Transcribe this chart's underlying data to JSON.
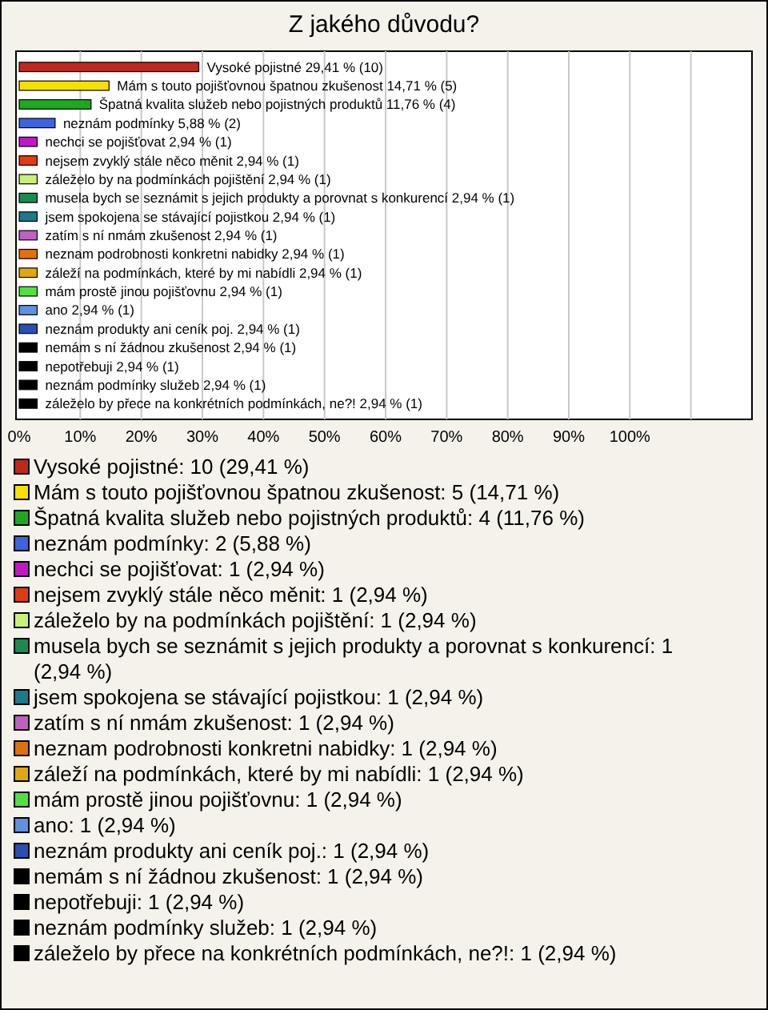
{
  "chart_data": [
    {
      "type": "bar",
      "title": "Z jakého důvodu?",
      "orientation": "horizontal",
      "categories": [
        "Vysoké pojistné",
        "Mám s touto pojišťovnou špatnou zkušenost",
        "Špatná kvalita služeb nebo pojistných produktů",
        "neznám podmínky",
        "nechci se pojišťovat",
        "nejsem zvyklý stále něco měnit",
        "záleželo by na  podmínkách  pojištění",
        "musela bych se seznámit s jejich produkty a porovnat s konkurencí",
        "jsem spokojena se stávající pojistkou",
        "zatím s ní nmám zkušenost",
        "neznam podrobnosti konkretni nabidky",
        "záleží na podmínkách, které by mi nabídli",
        "mám prostě jinou pojišťovnu",
        "ano",
        "neznám produkty ani ceník poj.",
        "nemám s ní žádnou zkušenost",
        "nepotřebuji",
        "neznám podmínky služeb",
        "záleželo by přece na konkrétních podmínkách, ne?!"
      ],
      "values": [
        29.41,
        14.71,
        11.76,
        5.88,
        2.94,
        2.94,
        2.94,
        2.94,
        2.94,
        2.94,
        2.94,
        2.94,
        2.94,
        2.94,
        2.94,
        2.94,
        2.94,
        2.94,
        2.94
      ],
      "value_labels": [
        "29,41 % (10)",
        "14,71 % (5)",
        "11,76 % (4)",
        "5,88 % (2)",
        "2,94 % (1)",
        "2,94 % (1)",
        "2,94 % (1)",
        "2,94 % (1)",
        "2,94 % (1)",
        "2,94 % (1)",
        "2,94 % (1)",
        "2,94 % (1)",
        "2,94 % (1)",
        "2,94 % (1)",
        "2,94 % (1)",
        "2,94 % (1)",
        "2,94 % (1)",
        "2,94 % (1)",
        "2,94 % (1)"
      ],
      "colors": [
        "#c0281c",
        "#f5e000",
        "#1fa81f",
        "#3c64e0",
        "#c018c8",
        "#e03c14",
        "#c8f078",
        "#1a8a50",
        "#1e7a8a",
        "#c060c0",
        "#e07010",
        "#e0a810",
        "#50e040",
        "#6090e0",
        "#2850b0",
        "#000000",
        "#000000",
        "#000000",
        "#000000"
      ],
      "xlim": [
        0,
        120
      ],
      "xticks": [
        {
          "value": 0,
          "label": "0%"
        },
        {
          "value": 10,
          "label": "10%"
        },
        {
          "value": 20,
          "label": "20%"
        },
        {
          "value": 30,
          "label": "30%"
        },
        {
          "value": 40,
          "label": "40%"
        },
        {
          "value": 50,
          "label": "50%"
        },
        {
          "value": 60,
          "label": "60%"
        },
        {
          "value": 70,
          "label": "70%"
        },
        {
          "value": 80,
          "label": "80%"
        },
        {
          "value": 90,
          "label": "90%"
        },
        {
          "value": 100,
          "label": "100%"
        },
        {
          "value": 110,
          "label": null
        }
      ],
      "grid": "x"
    },
    {
      "type": "other",
      "annotations": [
        "Vysoké pojistné: 10 (29,41 %)",
        "Mám s touto pojišťovnou špatnou zkušenost: 5 (14,71 %)",
        "Špatná kvalita služeb nebo pojistných produktů: 4 (11,76 %)",
        "neznám podmínky: 2 (5,88 %)",
        "nechci se pojišťovat: 1 (2,94 %)",
        "nejsem zvyklý stále něco měnit: 1 (2,94 %)",
        "záleželo by na  podmínkách  pojištění: 1 (2,94 %)",
        "musela bych se seznámit s jejich produkty a porovnat s konkurencí: 1 (2,94 %)",
        "jsem spokojena se stávající pojistkou: 1 (2,94 %)",
        "zatím s ní nmám zkušenost: 1 (2,94 %)",
        "neznam podrobnosti konkretni nabidky: 1 (2,94 %)",
        "záleží na podmínkách, které by mi nabídli: 1 (2,94 %)",
        "mám prostě jinou pojišťovnu: 1 (2,94 %)",
        "ano: 1 (2,94 %)",
        "neznám produkty ani ceník poj.: 1 (2,94 %)",
        "nemám s ní žádnou zkušenost: 1 (2,94 %)",
        "nepotřebuji: 1 (2,94 %)",
        "neznám podmínky služeb: 1 (2,94 %)",
        "záleželo by přece na konkrétních podmínkách, ne?!: 1 (2,94 %)"
      ]
    }
  ]
}
